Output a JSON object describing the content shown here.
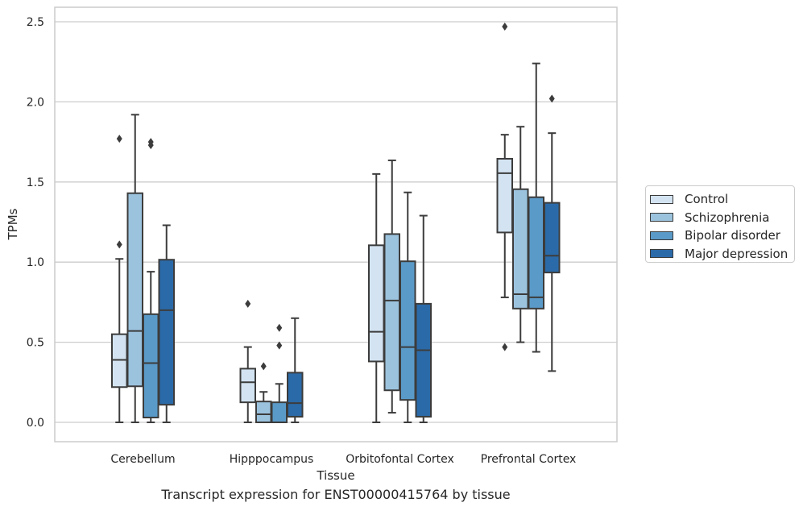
{
  "chart_data": {
    "type": "boxplot",
    "xlabel": "Tissue",
    "ylabel": "TPMs",
    "caption": "Transcript expression for ENST00000415764 by tissue",
    "ylim": [
      -0.12,
      2.59
    ],
    "yticks": [
      "0.0",
      "0.5",
      "1.0",
      "1.5",
      "2.0",
      "2.5"
    ],
    "grid": true,
    "legend_position": "right",
    "categories": [
      "Cerebellum",
      "Hipppocampus",
      "Orbitofontal Cortex",
      "Prefrontal Cortex"
    ],
    "series": [
      {
        "name": "Control",
        "color": "#d3e3f1",
        "boxes": [
          {
            "whislo": 0.0,
            "q1": 0.22,
            "med": 0.39,
            "q3": 0.55,
            "whishi": 1.02,
            "fliers": [
              1.11,
              1.77
            ]
          },
          {
            "whislo": 0.0,
            "q1": 0.125,
            "med": 0.25,
            "q3": 0.335,
            "whishi": 0.47,
            "fliers": [
              0.74
            ]
          },
          {
            "whislo": 0.0,
            "q1": 0.38,
            "med": 0.565,
            "q3": 1.105,
            "whishi": 1.55,
            "fliers": []
          },
          {
            "whislo": 0.78,
            "q1": 1.185,
            "med": 1.555,
            "q3": 1.645,
            "whishi": 1.795,
            "fliers": [
              0.47,
              2.47
            ]
          }
        ]
      },
      {
        "name": "Schizophrenia",
        "color": "#9cc3de",
        "boxes": [
          {
            "whislo": 0.0,
            "q1": 0.225,
            "med": 0.57,
            "q3": 1.43,
            "whishi": 1.92,
            "fliers": []
          },
          {
            "whislo": 0.0,
            "q1": 0.0,
            "med": 0.05,
            "q3": 0.13,
            "whishi": 0.19,
            "fliers": [
              0.35
            ]
          },
          {
            "whislo": 0.06,
            "q1": 0.2,
            "med": 0.76,
            "q3": 1.175,
            "whishi": 1.635,
            "fliers": []
          },
          {
            "whislo": 0.5,
            "q1": 0.71,
            "med": 0.8,
            "q3": 1.455,
            "whishi": 1.845,
            "fliers": []
          }
        ]
      },
      {
        "name": "Bipolar disorder",
        "color": "#5a9ac8",
        "boxes": [
          {
            "whislo": 0.0,
            "q1": 0.03,
            "med": 0.37,
            "q3": 0.675,
            "whishi": 0.94,
            "fliers": [
              1.73,
              1.75
            ]
          },
          {
            "whislo": 0.0,
            "q1": 0.0,
            "med": 0.0,
            "q3": 0.125,
            "whishi": 0.24,
            "fliers": [
              0.48,
              0.59
            ]
          },
          {
            "whislo": 0.0,
            "q1": 0.14,
            "med": 0.47,
            "q3": 1.005,
            "whishi": 1.435,
            "fliers": []
          },
          {
            "whislo": 0.44,
            "q1": 0.71,
            "med": 0.78,
            "q3": 1.405,
            "whishi": 2.24,
            "fliers": []
          }
        ]
      },
      {
        "name": "Major depression",
        "color": "#2b6aa8",
        "boxes": [
          {
            "whislo": 0.0,
            "q1": 0.11,
            "med": 0.7,
            "q3": 1.015,
            "whishi": 1.23,
            "fliers": []
          },
          {
            "whislo": 0.0,
            "q1": 0.035,
            "med": 0.12,
            "q3": 0.31,
            "whishi": 0.65,
            "fliers": []
          },
          {
            "whislo": 0.0,
            "q1": 0.035,
            "med": 0.45,
            "q3": 0.74,
            "whishi": 1.29,
            "fliers": []
          },
          {
            "whislo": 0.32,
            "q1": 0.935,
            "med": 1.04,
            "q3": 1.37,
            "whishi": 1.805,
            "fliers": [
              2.02
            ]
          }
        ]
      }
    ]
  }
}
